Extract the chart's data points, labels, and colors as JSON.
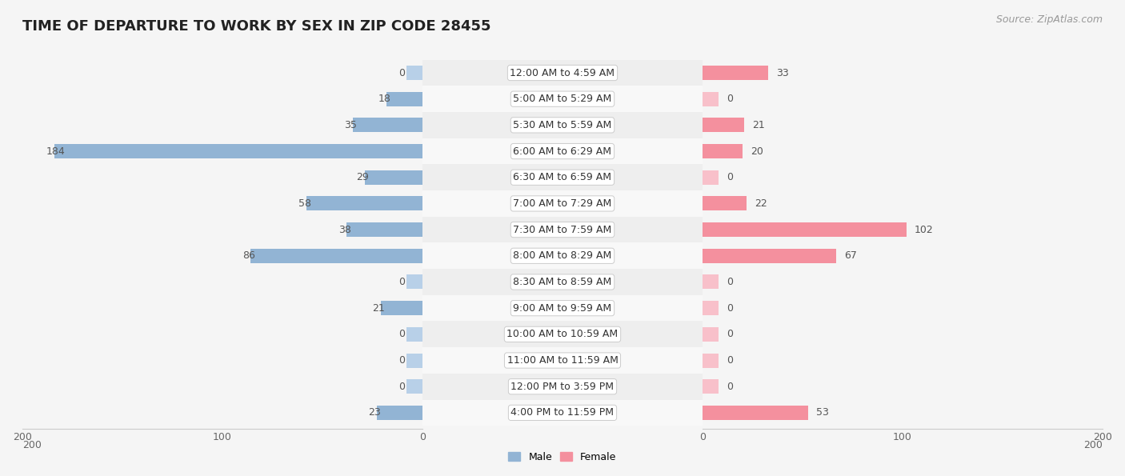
{
  "title": "TIME OF DEPARTURE TO WORK BY SEX IN ZIP CODE 28455",
  "source": "Source: ZipAtlas.com",
  "categories": [
    "12:00 AM to 4:59 AM",
    "5:00 AM to 5:29 AM",
    "5:30 AM to 5:59 AM",
    "6:00 AM to 6:29 AM",
    "6:30 AM to 6:59 AM",
    "7:00 AM to 7:29 AM",
    "7:30 AM to 7:59 AM",
    "8:00 AM to 8:29 AM",
    "8:30 AM to 8:59 AM",
    "9:00 AM to 9:59 AM",
    "10:00 AM to 10:59 AM",
    "11:00 AM to 11:59 AM",
    "12:00 PM to 3:59 PM",
    "4:00 PM to 11:59 PM"
  ],
  "male_values": [
    0,
    18,
    35,
    184,
    29,
    58,
    38,
    86,
    0,
    21,
    0,
    0,
    0,
    23
  ],
  "female_values": [
    33,
    0,
    21,
    20,
    0,
    22,
    102,
    67,
    0,
    0,
    0,
    0,
    0,
    53
  ],
  "male_color": "#92b4d4",
  "female_color": "#f4909e",
  "male_color_dark": "#5b8fc9",
  "female_color_dark": "#e8607a",
  "stub_color_male": "#b8d0e8",
  "stub_color_female": "#f8c0ca",
  "bar_height": 0.55,
  "xlim": 200,
  "title_fontsize": 13,
  "source_fontsize": 9,
  "tick_fontsize": 9,
  "value_fontsize": 9,
  "category_fontsize": 9,
  "row_colors": [
    "#eeeeee",
    "#f8f8f8"
  ],
  "background_color": "#f5f5f5"
}
